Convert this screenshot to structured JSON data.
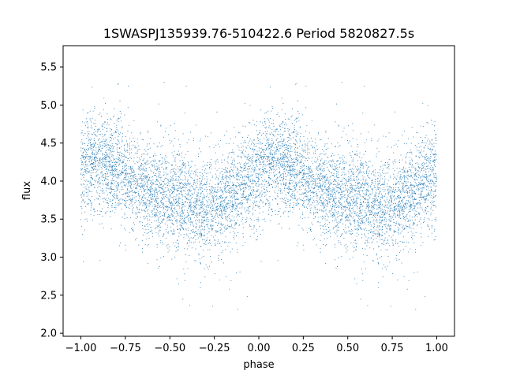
{
  "chart_data": {
    "type": "scatter",
    "title": "1SWASPJ135939.76-510422.6 Period 5820827.5s",
    "xlabel": "phase",
    "ylabel": "flux",
    "xlim": [
      -1.1,
      1.1
    ],
    "ylim": [
      1.96,
      5.78
    ],
    "xticks": [
      -1.0,
      -0.75,
      -0.5,
      -0.25,
      0.0,
      0.25,
      0.5,
      0.75,
      1.0
    ],
    "xtick_labels": [
      "−1.00",
      "−0.75",
      "−0.50",
      "−0.25",
      "0.00",
      "0.25",
      "0.50",
      "0.75",
      "1.00"
    ],
    "yticks": [
      2.0,
      2.5,
      3.0,
      3.5,
      4.0,
      4.5,
      5.0,
      5.5
    ],
    "ytick_labels": [
      "2.0",
      "2.5",
      "3.0",
      "3.5",
      "4.0",
      "4.5",
      "5.0",
      "5.5"
    ],
    "grid": false,
    "marker_color": "#1f77b4",
    "profile": {
      "phase": [
        0.0,
        0.1,
        0.2,
        0.3,
        0.4,
        0.5,
        0.6,
        0.7,
        0.8,
        0.9,
        1.0
      ],
      "median_flux": [
        4.15,
        4.25,
        4.2,
        3.95,
        3.85,
        3.8,
        3.72,
        3.65,
        3.75,
        3.9,
        4.05
      ]
    },
    "scatter_sd": 0.32,
    "flux_range": [
      2.1,
      5.6
    ],
    "n_points_per_cycle": 4000
  }
}
